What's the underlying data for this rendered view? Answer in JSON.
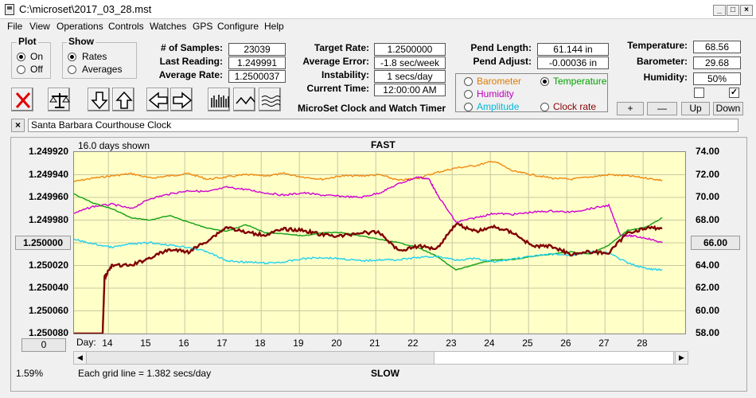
{
  "window": {
    "title": "C:\\microset\\2017_03_28.mst"
  },
  "menu": [
    "File",
    "View",
    "Operations",
    "Controls",
    "Watches",
    "GPS",
    "Configure",
    "Help"
  ],
  "plot_group": {
    "title": "Plot",
    "on": "On",
    "off": "Off",
    "selected": "On"
  },
  "show_group": {
    "title": "Show",
    "rates": "Rates",
    "averages": "Averages",
    "selected": "Rates"
  },
  "stats": {
    "samples_label": "# of Samples:",
    "samples": "23039",
    "last_reading_label": "Last Reading:",
    "last_reading": "1.249991",
    "avg_rate_label": "Average Rate:",
    "avg_rate": "1.2500037"
  },
  "target": {
    "target_rate_label": "Target Rate:",
    "target_rate": "1.2500000",
    "avg_error_label": "Average Error:",
    "avg_error": "-1.8 sec/week",
    "instability_label": "Instability:",
    "instability": "1 secs/day",
    "current_time_label": "Current Time:",
    "current_time": "12:00:00 AM"
  },
  "pend": {
    "length_label": "Pend Length:",
    "length": "61.144 in",
    "adjust_label": "Pend Adjust:",
    "adjust": "-0.00036 in"
  },
  "environment": {
    "temperature_label": "Temperature:",
    "temperature": "68.56",
    "barometer_label": "Barometer:",
    "barometer": "29.68",
    "humidity_label": "Humidity:",
    "humidity": "50%"
  },
  "sensor_options": [
    {
      "label": "Barometer",
      "color": "#e07a00",
      "selected": false
    },
    {
      "label": "Temperature",
      "color": "#00a000",
      "selected": true
    },
    {
      "label": "Humidity",
      "color": "#c000c0",
      "selected": false
    },
    {
      "label": "Amplitude",
      "color": "#00b8d8",
      "selected": false
    },
    {
      "label": "Clock rate",
      "color": "#8b0000",
      "selected": false
    }
  ],
  "app_caption": "MicroSet Clock and Watch Timer",
  "adjust_buttons": {
    "plus": "+",
    "minus": "—",
    "up": "Up",
    "down": "Down"
  },
  "clock_name": "Santa Barbara Courthouse Clock",
  "close_x": "×",
  "chart": {
    "days_shown": "16.0 days shown",
    "top_label": "FAST",
    "bottom_label": "SLOW",
    "grid_note": "Each grid line = 1.382 secs/day",
    "percent": "1.59%",
    "day_label": "Day:",
    "left_button": "1.250000",
    "right_button": "66.00",
    "bottom_button": "0"
  },
  "chart_data": {
    "type": "line",
    "x_ticks": [
      "14",
      "15",
      "16",
      "17",
      "18",
      "19",
      "20",
      "21",
      "22",
      "23",
      "24",
      "25",
      "26",
      "27",
      "28"
    ],
    "y_left_ticks": [
      "1.249920",
      "1.249940",
      "1.249960",
      "1.249980",
      "1.250000",
      "1.250020",
      "1.250040",
      "1.250060",
      "1.250080"
    ],
    "y_right_ticks": [
      "74.00",
      "72.00",
      "70.00",
      "68.00",
      "66.00",
      "64.00",
      "62.00",
      "60.00",
      "58.00"
    ],
    "x_range": [
      13.1,
      29.1
    ],
    "y_left_range": [
      1.24992,
      1.25008
    ],
    "y_right_range": [
      58,
      74
    ],
    "grid": true,
    "series": [
      {
        "name": "Barometer",
        "color": "#f08a10",
        "x": [
          13.1,
          13.6,
          14.1,
          14.6,
          15.1,
          15.6,
          16.1,
          16.6,
          17.1,
          17.6,
          18.1,
          18.6,
          19.1,
          19.6,
          20.1,
          20.6,
          21.1,
          21.6,
          22.1,
          22.6,
          23.1,
          23.6,
          24.1,
          24.6,
          25.1,
          25.6,
          26.1,
          26.6,
          27.1,
          27.6,
          28.1,
          28.5
        ],
        "y": [
          71.4,
          71.7,
          71.9,
          72.1,
          71.7,
          71.9,
          72.1,
          71.6,
          71.8,
          72.0,
          71.9,
          72.1,
          71.8,
          71.6,
          71.9,
          71.9,
          72.0,
          71.5,
          71.7,
          72.2,
          72.6,
          72.8,
          73.2,
          72.3,
          72.0,
          71.7,
          71.6,
          71.8,
          72.0,
          71.9,
          71.7,
          71.5
        ]
      },
      {
        "name": "Humidity",
        "color": "#d000d0",
        "x": [
          13.1,
          13.6,
          14.1,
          14.6,
          15.1,
          15.6,
          16.1,
          16.6,
          17.1,
          17.6,
          18.1,
          18.6,
          19.1,
          19.6,
          20.1,
          20.6,
          21.1,
          21.6,
          22.1,
          22.4,
          22.6,
          23.1,
          23.6,
          24.1,
          24.6,
          25.1,
          25.6,
          26.1,
          26.6,
          27.1,
          27.4,
          27.7,
          28.1,
          28.5
        ],
        "y": [
          68.6,
          69.2,
          69.4,
          69.0,
          69.9,
          70.3,
          70.6,
          70.5,
          70.9,
          70.7,
          70.4,
          70.2,
          70.4,
          70.2,
          70.1,
          70.0,
          70.4,
          71.2,
          71.8,
          71.6,
          70.3,
          67.8,
          68.2,
          68.6,
          68.5,
          68.7,
          68.8,
          68.7,
          69.0,
          69.3,
          66.7,
          66.6,
          66.4,
          66.0
        ]
      },
      {
        "name": "Temperature",
        "color": "#10a010",
        "x": [
          13.1,
          13.6,
          14.1,
          14.6,
          15.1,
          15.6,
          16.1,
          16.6,
          17.1,
          17.6,
          18.1,
          18.6,
          19.1,
          19.6,
          20.1,
          20.6,
          21.1,
          21.6,
          22.1,
          22.6,
          23.1,
          23.6,
          24.1,
          24.6,
          25.1,
          25.6,
          26.1,
          26.6,
          27.1,
          27.6,
          28.1,
          28.5
        ],
        "y": [
          70.3,
          69.5,
          69.0,
          68.2,
          68.0,
          68.4,
          67.8,
          67.3,
          67.0,
          67.6,
          66.9,
          66.8,
          66.6,
          66.9,
          66.9,
          66.6,
          66.3,
          66.0,
          65.6,
          64.8,
          63.6,
          64.1,
          64.5,
          64.5,
          64.8,
          65.0,
          65.2,
          65.0,
          65.8,
          67.1,
          67.4,
          68.2
        ]
      },
      {
        "name": "Amplitude",
        "color": "#20d0f0",
        "x": [
          13.1,
          13.6,
          14.1,
          14.6,
          15.1,
          15.6,
          16.1,
          16.6,
          17.1,
          17.6,
          18.1,
          18.6,
          19.1,
          19.6,
          20.1,
          20.6,
          21.1,
          21.6,
          22.1,
          22.6,
          23.1,
          23.6,
          24.1,
          24.6,
          25.1,
          25.6,
          26.1,
          26.6,
          27.1,
          27.6,
          28.1,
          28.5
        ],
        "y": [
          66.3,
          65.9,
          65.6,
          65.9,
          66.0,
          65.8,
          65.6,
          65.2,
          64.4,
          64.3,
          64.2,
          64.3,
          64.6,
          64.7,
          64.6,
          64.4,
          64.5,
          64.5,
          64.7,
          64.8,
          64.5,
          64.6,
          64.3,
          64.6,
          64.8,
          65.0,
          64.9,
          65.2,
          65.1,
          64.2,
          63.7,
          63.6
        ]
      },
      {
        "name": "Clock rate",
        "color": "#800000",
        "x": [
          13.1,
          13.6,
          13.85,
          13.9,
          14.1,
          14.6,
          15.1,
          15.6,
          16.1,
          16.6,
          17.1,
          17.6,
          18.1,
          18.6,
          19.1,
          19.6,
          20.1,
          20.6,
          21.1,
          21.6,
          22.1,
          22.6,
          23.1,
          23.6,
          24.1,
          24.6,
          25.1,
          25.6,
          26.1,
          26.6,
          27.1,
          27.6,
          28.1,
          28.5
        ],
        "y": [
          1.25008,
          1.25008,
          1.25008,
          1.25003,
          1.25002,
          1.25002,
          1.250013,
          1.250006,
          1.250008,
          1.249998,
          1.249986,
          1.249991,
          1.249993,
          1.249988,
          1.249989,
          1.249993,
          1.249994,
          1.249991,
          1.249991,
          1.250007,
          1.250003,
          1.250005,
          1.249983,
          1.24999,
          1.249986,
          1.249991,
          1.250003,
          1.250003,
          1.25001,
          1.250008,
          1.250009,
          1.249991,
          1.249987,
          1.249987
        ]
      }
    ]
  }
}
